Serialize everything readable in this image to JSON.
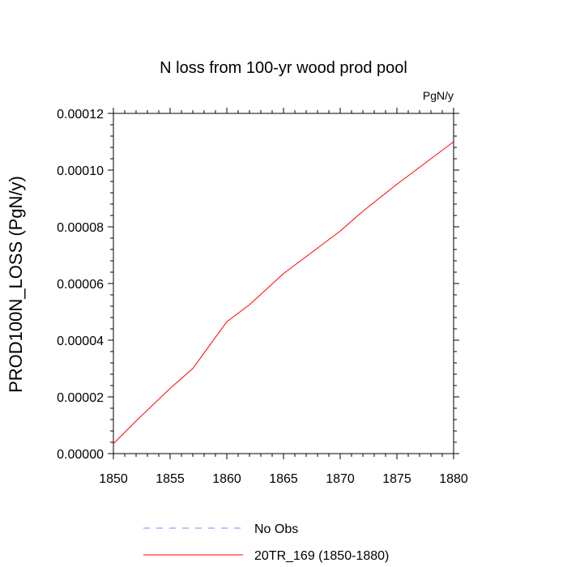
{
  "chart_data": {
    "type": "line",
    "title": "N loss from 100-yr wood prod pool",
    "units_label": "PgN/y",
    "xlabel": "",
    "ylabel": "PROD100N_LOSS  (PgN/y)",
    "xlim": [
      1850,
      1880
    ],
    "ylim": [
      0,
      0.00012
    ],
    "x_ticks": [
      "1850",
      "1855",
      "1860",
      "1865",
      "1870",
      "1875",
      "1880"
    ],
    "y_ticks": [
      "0.00000",
      "0.00002",
      "0.00004",
      "0.00006",
      "0.00008",
      "0.00010",
      "0.00012"
    ],
    "grid": false,
    "legend_position": "bottom",
    "series": [
      {
        "name": "No Obs",
        "color": "#8080ff",
        "style": "dashed",
        "x": [],
        "y": []
      },
      {
        "name": "20TR_169 (1850-1880)",
        "color": "#ff0000",
        "style": "solid",
        "x": [
          1850,
          1852,
          1855,
          1857,
          1860,
          1862,
          1865,
          1868,
          1870,
          1872,
          1875,
          1878,
          1880
        ],
        "y": [
          3.5e-06,
          1.15e-05,
          2.3e-05,
          3e-05,
          4.65e-05,
          5.25e-05,
          6.35e-05,
          7.25e-05,
          7.85e-05,
          8.55e-05,
          9.5e-05,
          0.000104,
          0.00011
        ]
      }
    ]
  }
}
